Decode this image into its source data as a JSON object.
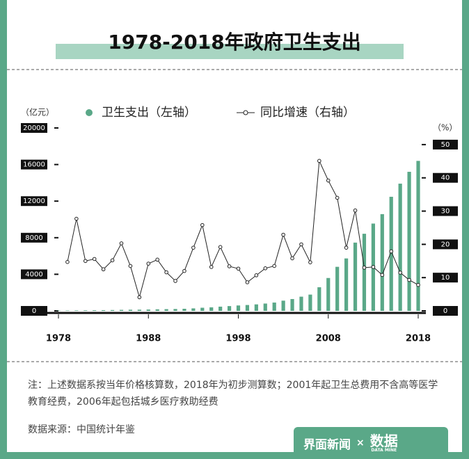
{
  "chart_data": {
    "type": "bar",
    "title": "1978-2018年政府卫生支出",
    "y_unit": "（亿元）",
    "y2_unit": "（%）",
    "x": [
      1978,
      1979,
      1980,
      1981,
      1982,
      1983,
      1984,
      1985,
      1986,
      1987,
      1988,
      1989,
      1990,
      1991,
      1992,
      1993,
      1994,
      1995,
      1996,
      1997,
      1998,
      1999,
      2000,
      2001,
      2002,
      2003,
      2004,
      2005,
      2006,
      2007,
      2008,
      2009,
      2010,
      2011,
      2012,
      2013,
      2014,
      2015,
      2016,
      2017,
      2018
    ],
    "xlim": [
      1978,
      2018
    ],
    "xticks": [
      1978,
      1988,
      1998,
      2008,
      2018
    ],
    "ylim": [
      0,
      20000
    ],
    "yticks": [
      0,
      4000,
      8000,
      12000,
      16000,
      20000
    ],
    "y2lim": [
      0,
      55
    ],
    "y2ticks": [
      0,
      10,
      20,
      30,
      40,
      50
    ],
    "series": [
      {
        "name": "卫生支出（左轴）",
        "type": "bar",
        "color": "#5aa888",
        "values": [
          35.44,
          40.64,
          51.91,
          59.67,
          68.99,
          77.63,
          89.46,
          107.65,
          122.23,
          127.28,
          145.39,
          167.83,
          187.28,
          204.05,
          228.61,
          272.06,
          342.28,
          387.34,
          461.61,
          523.56,
          590.06,
          640.96,
          709.52,
          800.61,
          908.51,
          1116.94,
          1293.58,
          1552.53,
          1778.86,
          2581.58,
          3593.94,
          4816.26,
          5732.49,
          7464.18,
          8431.98,
          9545.81,
          10579.23,
          12475.28,
          13910.31,
          15205.87,
          16399.13
        ]
      },
      {
        "name": "同比增速（右轴）",
        "type": "line",
        "axis": "y2",
        "color": "#222222",
        "values": [
          null,
          14.7,
          27.7,
          15.0,
          15.6,
          12.5,
          15.2,
          20.3,
          13.5,
          4.1,
          14.2,
          15.4,
          11.6,
          9.0,
          12.0,
          19.0,
          25.8,
          13.2,
          19.2,
          13.4,
          12.7,
          8.6,
          10.7,
          12.8,
          13.5,
          22.9,
          15.8,
          20.0,
          14.6,
          45.1,
          39.2,
          34.0,
          19.0,
          30.2,
          13.0,
          13.2,
          10.8,
          17.9,
          11.5,
          9.3,
          7.8
        ]
      }
    ]
  },
  "note": "注：上述数据系按当年价格核算数，2018年为初步测算数；2001年起卫生总费用不含高等医学教育经费，2006年起包括城乡医疗救助经费",
  "source": "数据来源：中国统计年鉴",
  "footer": {
    "brand": "界面新闻",
    "times": "×",
    "partner": "数据",
    "partner_sub": "DATA MINE"
  }
}
